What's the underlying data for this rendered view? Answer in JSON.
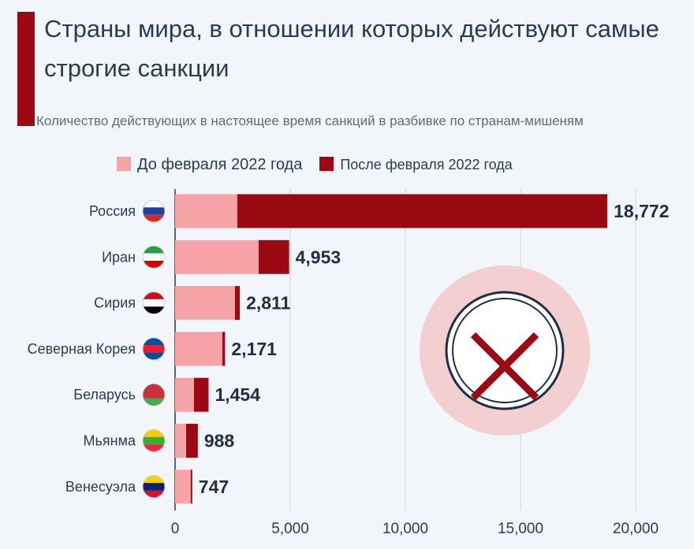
{
  "title": "Страны мира, в отношении которых действуют самые строгие санкции",
  "subtitle": "Количество действующих в настоящее время санкций в разбивке по странам-мишеням",
  "colors": {
    "before": "#f5a3a6",
    "after": "#9b0a12",
    "accent": "#9b0a12"
  },
  "chart_data": {
    "type": "bar",
    "orientation": "horizontal",
    "stacked": true,
    "categories": [
      "Россия",
      "Иран",
      "Сирия",
      "Северная Корея",
      "Беларусь",
      "Мьянма",
      "Венесуэла"
    ],
    "series": [
      {
        "name": "До февраля 2022 года",
        "values": [
          2700,
          3630,
          2600,
          2050,
          820,
          480,
          680
        ]
      },
      {
        "name": "После февраля 2022 года",
        "values": [
          16072,
          1323,
          211,
          121,
          634,
          508,
          67
        ]
      }
    ],
    "totals": [
      18772,
      4953,
      2811,
      2171,
      1454,
      988,
      747
    ],
    "total_labels": [
      "18,772",
      "4,953",
      "2,811",
      "2,171",
      "1,454",
      "988",
      "747"
    ],
    "xlim": [
      0,
      20000
    ],
    "xticks": [
      0,
      5000,
      10000,
      15000,
      20000
    ],
    "xtick_labels": [
      "0",
      "5,000",
      "10,000",
      "15,000",
      "20,000"
    ],
    "grid": true,
    "legend_position": "top",
    "flags": [
      "russia-flag",
      "iran-flag",
      "syria-flag",
      "north-korea-flag",
      "belarus-flag",
      "myanmar-flag",
      "venezuela-flag"
    ],
    "decoration": "cross-in-circle-icon"
  }
}
